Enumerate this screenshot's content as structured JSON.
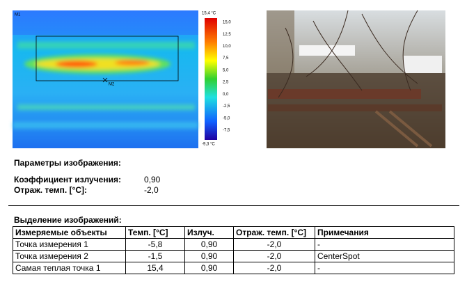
{
  "thermal_image": {
    "markers": [
      "M1",
      "M2"
    ],
    "scale_labels": [
      "15,4 °C",
      "15,0",
      "12,5",
      "10,0",
      "7,5",
      "5,0",
      "2,5",
      "0,0",
      "-2,5",
      "-5,0",
      "-7,5",
      "-9,3 °C"
    ]
  },
  "parameters": {
    "title": "Параметры изображения:",
    "rows": [
      [
        "Коэффициент излучения:",
        "0,90"
      ],
      [
        "Отраж. темп. [°C]:",
        "-2,0"
      ]
    ]
  },
  "selection": {
    "title": "Выделение изображений:",
    "table": {
      "header": [
        "Измеряемые объекты",
        "Темп. [°C]",
        "Излуч.",
        "Отраж. темп. [°C]",
        "Примечания"
      ],
      "rows": [
        [
          "Точка измерения 1",
          "-5,8",
          "0,90",
          "-2,0",
          "-"
        ],
        [
          "Точка измерения 2",
          "-1,5",
          "0,90",
          "-2,0",
          "CenterSpot"
        ],
        [
          "Самая теплая точка 1",
          "15,4",
          "0,90",
          "-2,0",
          "-"
        ]
      ]
    }
  }
}
